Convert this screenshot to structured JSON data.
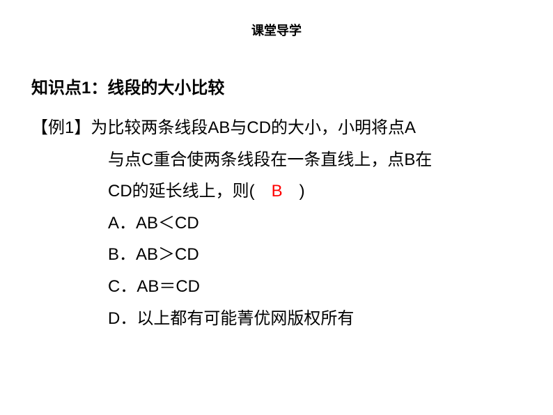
{
  "header": {
    "title": "课堂导学"
  },
  "topic": {
    "label": "知识点1：线段的大小比较"
  },
  "problem": {
    "example_label": "【例1】",
    "line1": "为比较两条线段AB与CD的大小，小明将点A",
    "line2": "与点C重合使两条线段在一条直线上，点B在",
    "line3_part1": "CD的延长线上，则(　",
    "answer": "B",
    "line3_part2": "　)"
  },
  "options": {
    "a": "A．AB＜CD",
    "b": "B．AB＞CD",
    "c": "C．AB＝CD",
    "d": "D．以上都有可能菁优网版权所有"
  },
  "colors": {
    "text": "#000000",
    "answer": "#ff0000",
    "background": "#ffffff"
  }
}
